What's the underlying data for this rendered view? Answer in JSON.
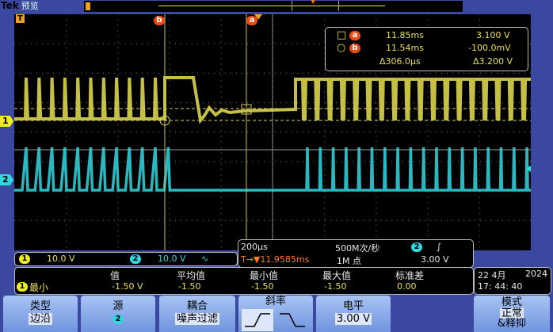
{
  "header": {
    "brand": "Tek",
    "mode": "预览"
  },
  "colors": {
    "ch1": "#e8e050",
    "ch2": "#30d8e0",
    "cursor": "#f04a10",
    "background": "#3a48a0"
  },
  "cursors": {
    "a_label": "a",
    "b_label": "b",
    "a_time": "11.85ms",
    "a_volt": "3.100 V",
    "b_time": "11.54ms",
    "b_volt": "-100.0mV",
    "delta_time": "Δ306.0µs",
    "delta_volt": "Δ3.200 V"
  },
  "markers": {
    "trigger": "T",
    "ch1": "1",
    "ch2": "2"
  },
  "channels": {
    "ch1_num": "1",
    "ch1_scale": "10.0 V",
    "ch2_num": "2",
    "ch2_scale": "10.0 V",
    "ch2_bw": "∿"
  },
  "timebase": {
    "scale": "200µs",
    "sample_rate": "500M次/秒",
    "trigger_src": "2",
    "slope_icon": "∫",
    "trigger_pos": "T→▼11.9585ms",
    "record": "1M 点",
    "trigger_level": "3.00 V"
  },
  "measurement": {
    "headers": [
      "值",
      "平均值",
      "最小值",
      "最大值",
      "标准差"
    ],
    "row_src": "1",
    "row_name": "最小",
    "values": [
      "-1.50 V",
      "-1.50",
      "-1.50",
      "-1.50",
      "0.00"
    ]
  },
  "datetime": {
    "date": "22 4月",
    "year": "2024",
    "time": "17: 44: 40"
  },
  "menu": {
    "type_label": "类型",
    "type_value": "边沿",
    "source_label": "源",
    "source_value": "2",
    "coupling_label": "耦合",
    "coupling_value": "噪声过滤",
    "slope_label": "斜率",
    "level_label": "电平",
    "level_value": "3.00 V",
    "mode_label": "模式",
    "mode_value": "正常",
    "mode_value2": "&释抑"
  }
}
